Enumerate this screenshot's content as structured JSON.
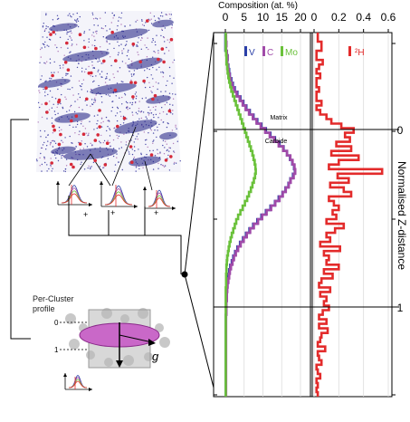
{
  "chart_data": [
    {
      "type": "line",
      "panel": "composition",
      "title": "Composition (at. %)",
      "xlim": [
        0,
        20
      ],
      "x_ticks": [
        "0",
        "5",
        "10",
        "15",
        "20"
      ],
      "legend": {
        "placement": "top-left"
      },
      "annotations": [
        "Matrix",
        "Carbide"
      ],
      "y_axis": "depth (top to bottom)",
      "series": [
        {
          "name": "V",
          "color": "#2b3fa8",
          "values": [
            0,
            0,
            0,
            0,
            0.3,
            0.6,
            0.5,
            0.8,
            1,
            1.2,
            1.6,
            2,
            2.5,
            3.2,
            4,
            4.8,
            5.6,
            6.5,
            7.5,
            8.5,
            9.6,
            10.8,
            12,
            13.2,
            14.4,
            15.5,
            16.4,
            17.2,
            17.8,
            18.3,
            18.5,
            18,
            17.3,
            16.8,
            16,
            15.2,
            14.2,
            13.2,
            12,
            10.8,
            9.6,
            8.5,
            7.4,
            6.4,
            5.5,
            4.7,
            3.9,
            3.2,
            2.6,
            2.1,
            1.7,
            1.3,
            1,
            0.8,
            0.6,
            0.5,
            0.4,
            0.3,
            0.3,
            0.2,
            0.2,
            0.2,
            0.1,
            0.1,
            0.1,
            0.1,
            0.1,
            0.1,
            0.1,
            0.1,
            0.1,
            0.1,
            0.1,
            0.1,
            0.1,
            0.1,
            0.1,
            0.1,
            0.1,
            0.1
          ]
        },
        {
          "name": "C",
          "color": "#a04aa8",
          "values": [
            0.2,
            0.2,
            0.3,
            0.2,
            0.4,
            0.6,
            0.5,
            0.7,
            0.9,
            1.1,
            1.4,
            1.8,
            2.3,
            3,
            3.8,
            4.6,
            5.4,
            6.3,
            7.3,
            8.3,
            9.4,
            10.6,
            11.8,
            13,
            14.2,
            15.4,
            16.4,
            17.3,
            17.9,
            18.4,
            18.6,
            18.2,
            17.4,
            16.9,
            16.1,
            15.3,
            14.4,
            13.3,
            12.2,
            11,
            9.8,
            8.7,
            7.6,
            6.6,
            5.7,
            4.9,
            4.1,
            3.4,
            2.8,
            2.3,
            1.9,
            1.5,
            1.2,
            1,
            0.8,
            0.6,
            0.5,
            0.4,
            0.4,
            0.3,
            0.3,
            0.3,
            0.2,
            0.2,
            0.2,
            0.2,
            0.2,
            0.2,
            0.2,
            0.2,
            0.2,
            0.2,
            0.2,
            0.2,
            0.2,
            0.2,
            0.2,
            0.2,
            0.2,
            0.2
          ]
        },
        {
          "name": "Mo",
          "color": "#6ac13a",
          "values": [
            0.1,
            0.1,
            0.1,
            0.1,
            0.2,
            0.3,
            0.3,
            0.5,
            0.6,
            0.8,
            1,
            1.3,
            1.6,
            2,
            2.4,
            2.8,
            3.2,
            3.6,
            4,
            4.4,
            4.8,
            5.2,
            5.6,
            6,
            6.4,
            6.8,
            7.2,
            7.5,
            7.8,
            8,
            8.1,
            7.9,
            7.6,
            7.2,
            6.8,
            6.3,
            5.8,
            5.2,
            4.6,
            4,
            3.4,
            2.9,
            2.5,
            2.1,
            1.7,
            1.4,
            1.1,
            0.9,
            0.7,
            0.5,
            0.4,
            0.3,
            0.3,
            0.2,
            0.2,
            0.2,
            0.1,
            0.1,
            0.1,
            0.1,
            0.1,
            0.1,
            0.1,
            0.1,
            0.1,
            0.1,
            0.1,
            0.1,
            0.1,
            0.1,
            0.1,
            0.1,
            0.1,
            0.1,
            0.1,
            0.1,
            0.1,
            0.1,
            0.1,
            0.1
          ]
        }
      ]
    },
    {
      "type": "line",
      "panel": "hydrogen",
      "xlim": [
        0,
        0.6
      ],
      "x_ticks": [
        "0",
        "0.2",
        "0.4",
        "0.6"
      ],
      "legend": {
        "placement": "top-right"
      },
      "y_axis": "depth (top to bottom)",
      "series": [
        {
          "name": "²H",
          "color": "#e32b2b",
          "values": [
            0.03,
            0.03,
            0.06,
            0.06,
            0.02,
            0.02,
            0.07,
            0.04,
            0.02,
            0.05,
            0.02,
            0.02,
            0.04,
            0.02,
            0.02,
            0.06,
            0.02,
            0.05,
            0.1,
            0.14,
            0.22,
            0.32,
            0.25,
            0.29,
            0.18,
            0.3,
            0.14,
            0.36,
            0.2,
            0.12,
            0.55,
            0.19,
            0.28,
            0.13,
            0.24,
            0.3,
            0.12,
            0.16,
            0.2,
            0.15,
            0.18,
            0.1,
            0.24,
            0.17,
            0.1,
            0.13,
            0.05,
            0.21,
            0.08,
            0.12,
            0.1,
            0.2,
            0.08,
            0.15,
            0.06,
            0.04,
            0.13,
            0.05,
            0.1,
            0.08,
            0.12,
            0.07,
            0.04,
            0.1,
            0.04,
            0.11,
            0.06,
            0.05,
            0.03,
            0.09,
            0.03,
            0.04,
            0.06,
            0.02,
            0.03,
            0.05,
            0.02,
            0.03,
            0.02,
            0.03
          ]
        }
      ]
    }
  ],
  "right_axis": {
    "label": "Normalised  Z-distance",
    "tick_labels": [
      "0",
      "1"
    ]
  },
  "schematic": {
    "per_cluster_label_line1": "Per-Cluster",
    "per_cluster_label_line2": "profile",
    "tick_0": "0",
    "tick_1": "1",
    "g_symbol": "g",
    "plus_sign": "+"
  }
}
